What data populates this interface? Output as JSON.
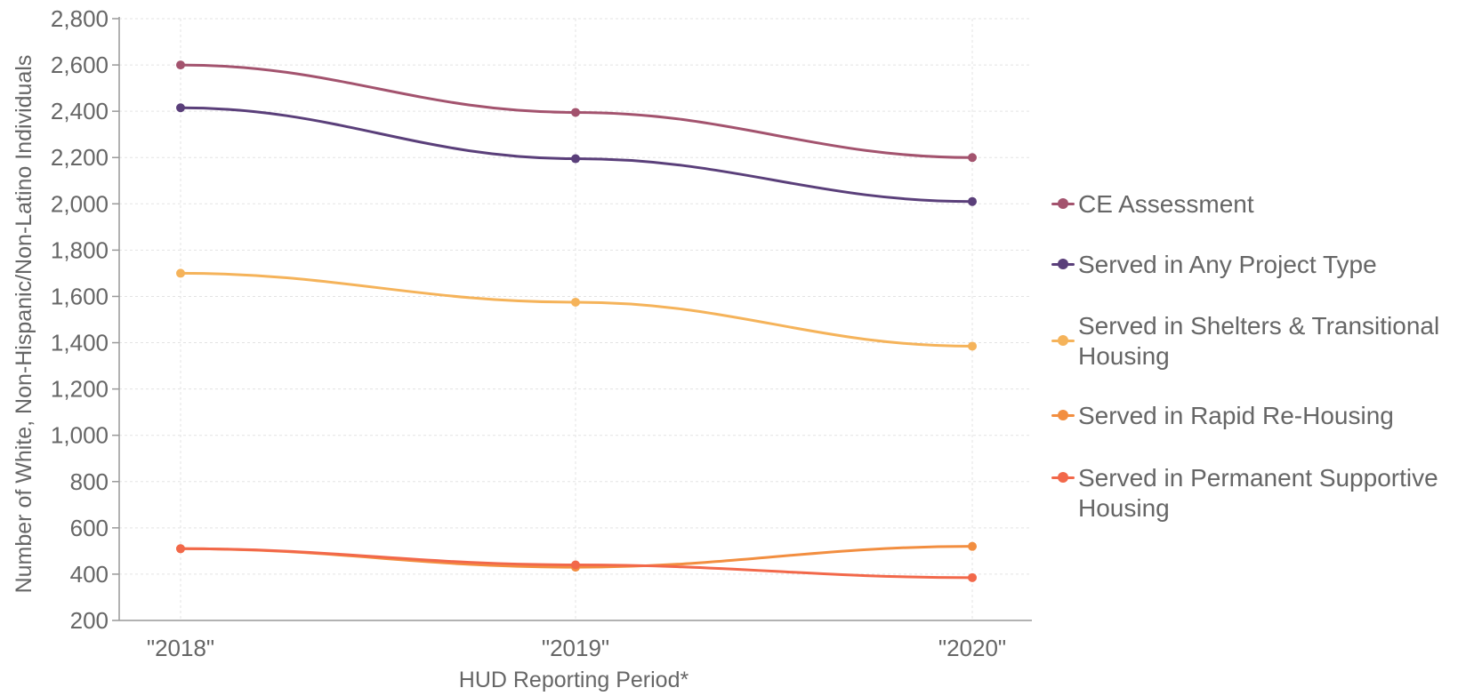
{
  "chart_data": {
    "type": "line",
    "categories": [
      "\"2018\"",
      "\"2019\"",
      "\"2020\""
    ],
    "xlabel": "HUD Reporting Period*",
    "ylabel": "Number of White, Non-Hispanic/Non-Latino Individuals",
    "ylim": [
      200,
      2800
    ],
    "yticks": [
      200,
      400,
      600,
      800,
      1000,
      1200,
      1400,
      1600,
      1800,
      2000,
      2200,
      2400,
      2600,
      2800
    ],
    "ytick_labels": [
      "200",
      "400",
      "600",
      "800",
      "1,000",
      "1,200",
      "1,400",
      "1,600",
      "1,800",
      "2,000",
      "2,200",
      "2,400",
      "2,600",
      "2,800"
    ],
    "grid": true,
    "legend_position": "right",
    "series": [
      {
        "name": "CE Assessment",
        "color": "#a3536e",
        "values": [
          2600,
          2395,
          2200
        ]
      },
      {
        "name": "Served in Any Project Type",
        "color": "#5a3f7a",
        "values": [
          2415,
          2195,
          2010
        ]
      },
      {
        "name": "Served in Shelters & Transitional Housing",
        "color": "#f5b35a",
        "values": [
          1700,
          1575,
          1385
        ]
      },
      {
        "name": "Served in Rapid Re-Housing",
        "color": "#f28e40",
        "values": [
          510,
          430,
          520
        ]
      },
      {
        "name": "Served in Permanent Supportive Housing",
        "color": "#f2684a",
        "values": [
          510,
          440,
          385
        ]
      }
    ]
  }
}
